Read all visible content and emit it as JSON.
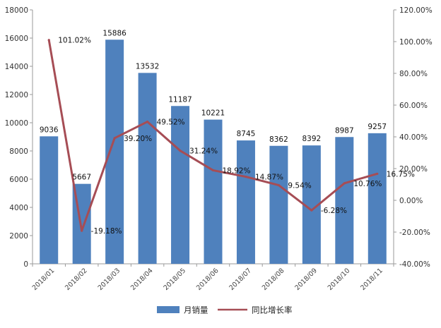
{
  "chart_data": {
    "type": "bar",
    "categories": [
      "2018/01",
      "2018/02",
      "2018/03",
      "2018/04",
      "2018/05",
      "2018/06",
      "2018/07",
      "2018/08",
      "2018/09",
      "2018/10",
      "2018/11"
    ],
    "series": [
      {
        "name": "月销量",
        "type": "bar",
        "axis": "left",
        "color": "#4f81bd",
        "values": [
          9036,
          5667,
          15886,
          13532,
          11187,
          10221,
          8745,
          8362,
          8392,
          8987,
          9257
        ],
        "labels": [
          "9036",
          "5667",
          "15886",
          "13532",
          "11187",
          "10221",
          "8745",
          "8362",
          "8392",
          "8987",
          "9257"
        ]
      },
      {
        "name": "同比增长率",
        "type": "line",
        "axis": "right",
        "color": "#a64d55",
        "values": [
          101.02,
          -19.18,
          39.2,
          49.52,
          31.24,
          18.92,
          14.87,
          9.54,
          -6.28,
          10.76,
          16.75
        ],
        "labels": [
          "101.02%",
          "-19.18%",
          "39.20%",
          "49.52%",
          "31.24%",
          "18.92%",
          "14.87%",
          "9.54%",
          "-6.28%",
          "10.76%",
          "16.75%"
        ]
      }
    ],
    "y_left": {
      "lim": [
        0,
        18000
      ],
      "ticks": [
        "0",
        "2000",
        "4000",
        "6000",
        "8000",
        "10000",
        "12000",
        "14000",
        "16000",
        "18000"
      ]
    },
    "y_right": {
      "lim": [
        -40,
        120
      ],
      "ticks": [
        "-40.00%",
        "-20.00%",
        "0.00%",
        "20.00%",
        "40.00%",
        "60.00%",
        "80.00%",
        "100.00%",
        "120.00%"
      ]
    },
    "grid": false,
    "legend": "bottom"
  }
}
